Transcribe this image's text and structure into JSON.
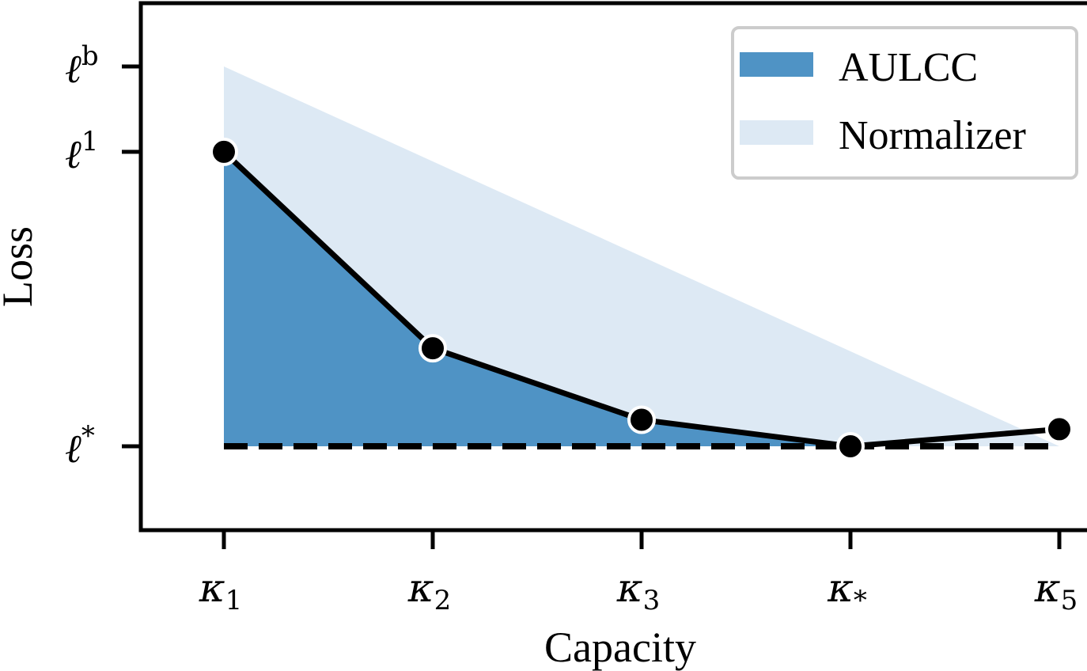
{
  "chart_data": {
    "type": "line",
    "xlabel": "Capacity",
    "ylabel": "Loss",
    "x_ticks": [
      {
        "base": "κ",
        "sub": "1"
      },
      {
        "base": "κ",
        "sub": "2"
      },
      {
        "base": "κ",
        "sub": "3"
      },
      {
        "base": "κ",
        "sub": "*"
      },
      {
        "base": "κ",
        "sub": "5"
      }
    ],
    "y_ticks": [
      {
        "base": "ℓ",
        "sup": "*",
        "value": 0
      },
      {
        "base": "ℓ",
        "sup": "1",
        "value": 1.0
      },
      {
        "base": "ℓ",
        "sup": "b",
        "value": 1.29
      }
    ],
    "series": [
      {
        "values": [
          1.0,
          0.333,
          0.09,
          0.0,
          0.058
        ],
        "color": "#000000"
      }
    ],
    "reference_line": {
      "value": 0,
      "style": "dashed",
      "color": "#000000"
    },
    "areas": [
      {
        "name": "AULCC",
        "color": "#4f93c5",
        "from_index": 0,
        "to_index": 3
      },
      {
        "name": "Normalizer",
        "color": "#dde9f4",
        "from": 1.29,
        "to": 0.0
      }
    ],
    "ylim": [
      -0.29,
      1.51
    ],
    "legend": {
      "position": "top-right",
      "entries": [
        {
          "label": "AULCC",
          "color": "#4f93c5"
        },
        {
          "label": "Normalizer",
          "color": "#dde9f4"
        }
      ]
    }
  }
}
